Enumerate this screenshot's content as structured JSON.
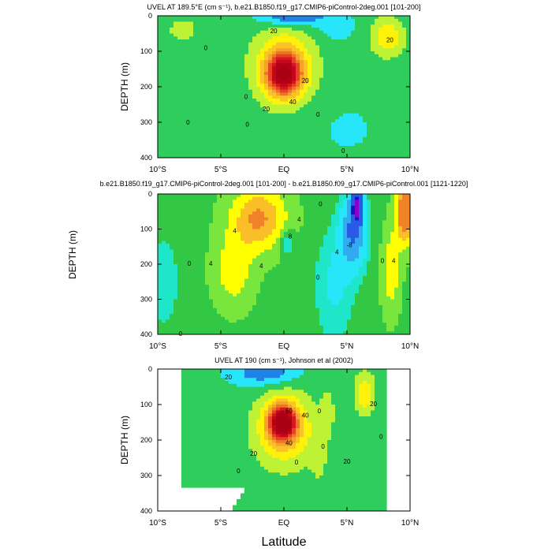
{
  "figure": {
    "xlabel_shared": "Latitude",
    "ylabel_shared": "DEPTH (m)"
  },
  "chart_data": [
    {
      "type": "heatmap",
      "subtype": "filled-contour",
      "title": "UVEL AT 189.5°E (cm s⁻¹), b.e21.B1850.f19_g17.CMIP6-piControl-2deg.001 [101-200]",
      "ylabel": "DEPTH (m)",
      "xlabel": "",
      "x_ticklabels": [
        "10°S",
        "5°S",
        "EQ",
        "5°N",
        "10°N"
      ],
      "x_ticks": [
        -10,
        -5,
        0,
        5,
        10
      ],
      "y_ticklabels": [
        "0",
        "100",
        "200",
        "300",
        "400"
      ],
      "y_ticks": [
        0,
        100,
        200,
        300,
        400
      ],
      "xlim": [
        -10,
        10
      ],
      "ylim": [
        400,
        0
      ],
      "contour_labels": [
        {
          "text": "20",
          "x": -0.8,
          "y": 42
        },
        {
          "text": "0",
          "x": -6.2,
          "y": 90
        },
        {
          "text": "20",
          "x": 8.4,
          "y": 68
        },
        {
          "text": "0",
          "x": -3.0,
          "y": 228
        },
        {
          "text": "0",
          "x": -7.6,
          "y": 300
        },
        {
          "text": "0",
          "x": -2.9,
          "y": 305
        },
        {
          "text": "20",
          "x": 1.7,
          "y": 182
        },
        {
          "text": "40",
          "x": 0.7,
          "y": 242
        },
        {
          "text": "20",
          "x": -1.4,
          "y": 262
        },
        {
          "text": "0",
          "x": 2.7,
          "y": 278
        },
        {
          "text": "0",
          "x": 4.7,
          "y": 380
        }
      ],
      "features": [
        {
          "kind": "jet-core",
          "center_lat": 0.0,
          "center_depth": 165,
          "peak": 80
        },
        {
          "kind": "eastward-max",
          "center_lat": 8.3,
          "center_depth": 65,
          "peak": 25
        },
        {
          "kind": "westward-surface",
          "center_lat": 0.5,
          "center_depth": 5,
          "peak": -35
        }
      ]
    },
    {
      "type": "heatmap",
      "subtype": "filled-contour",
      "title": "b.e21.B1850.f19_g17.CMIP6-piControl-2deg.001 [101-200] - b.e21.B1850.f09_g17.CMIP6-piControl.001 [1121-1220]",
      "ylabel": "DEPTH (m)",
      "xlabel": "",
      "x_ticklabels": [
        "10°S",
        "5°S",
        "EQ",
        "5°N",
        "10°N"
      ],
      "x_ticks": [
        -10,
        -5,
        0,
        5,
        10
      ],
      "y_ticklabels": [
        "0",
        "100",
        "200",
        "300",
        "400"
      ],
      "y_ticks": [
        0,
        100,
        200,
        300,
        400
      ],
      "xlim": [
        -10,
        10
      ],
      "ylim": [
        400,
        0
      ],
      "contour_labels": [
        {
          "text": "4",
          "x": -3.9,
          "y": 105
        },
        {
          "text": "4",
          "x": 1.2,
          "y": 72
        },
        {
          "text": "8",
          "x": 0.5,
          "y": 120
        },
        {
          "text": "0",
          "x": -7.5,
          "y": 198
        },
        {
          "text": "4",
          "x": -5.8,
          "y": 198
        },
        {
          "text": "4",
          "x": -1.8,
          "y": 205
        },
        {
          "text": "0",
          "x": 2.7,
          "y": 237
        },
        {
          "text": "0",
          "x": 2.9,
          "y": 28
        },
        {
          "text": "4",
          "x": 4.2,
          "y": 165
        },
        {
          "text": "-8",
          "x": 5.2,
          "y": 145
        },
        {
          "text": "0",
          "x": 7.8,
          "y": 190
        },
        {
          "text": "4",
          "x": 8.7,
          "y": 190
        },
        {
          "text": "0",
          "x": -8.2,
          "y": 398
        }
      ],
      "features": [
        {
          "kind": "negative-minimum",
          "center_lat": 5.8,
          "center_depth": 45,
          "peak": -20
        },
        {
          "kind": "positive-max",
          "center_lat": -1.2,
          "center_depth": 90,
          "peak": 8
        },
        {
          "kind": "positive-max",
          "center_lat": 9.5,
          "center_depth": 55,
          "peak": 10
        }
      ]
    },
    {
      "type": "heatmap",
      "subtype": "filled-contour",
      "title": "UVEL AT 190 (cm s⁻¹), Johnson et al (2002)",
      "ylabel": "DEPTH (m)",
      "xlabel": "Latitude",
      "x_ticklabels": [
        "10°S",
        "5°S",
        "EQ",
        "5°N",
        "10°N"
      ],
      "x_ticks": [
        -10,
        -5,
        0,
        5,
        10
      ],
      "y_ticklabels": [
        "0",
        "100",
        "200",
        "300",
        "400"
      ],
      "y_ticks": [
        0,
        100,
        200,
        300,
        400
      ],
      "xlim": [
        -10,
        10
      ],
      "ylim": [
        400,
        0
      ],
      "data_extent_lat": [
        -8,
        8
      ],
      "contour_labels": [
        {
          "text": "20",
          "x": -4.4,
          "y": 22
        },
        {
          "text": "0",
          "x": 2.8,
          "y": 118
        },
        {
          "text": "20",
          "x": 7.1,
          "y": 98
        },
        {
          "text": "40",
          "x": 1.7,
          "y": 130
        },
        {
          "text": "60",
          "x": 0.4,
          "y": 118
        },
        {
          "text": "20",
          "x": -2.4,
          "y": 238
        },
        {
          "text": "40",
          "x": 0.4,
          "y": 208
        },
        {
          "text": "0",
          "x": 3.1,
          "y": 218
        },
        {
          "text": "0",
          "x": 1.0,
          "y": 262
        },
        {
          "text": "0",
          "x": -3.6,
          "y": 287
        },
        {
          "text": "20",
          "x": 5.0,
          "y": 260
        },
        {
          "text": "0",
          "x": 7.7,
          "y": 190
        }
      ],
      "features": [
        {
          "kind": "jet-core",
          "center_lat": -0.1,
          "center_depth": 150,
          "peak": 90
        },
        {
          "kind": "eastward-max",
          "center_lat": 6.4,
          "center_depth": 70,
          "peak": 25
        },
        {
          "kind": "westward-surface",
          "center_lat": -1.5,
          "center_depth": 10,
          "peak": -25
        }
      ]
    }
  ]
}
